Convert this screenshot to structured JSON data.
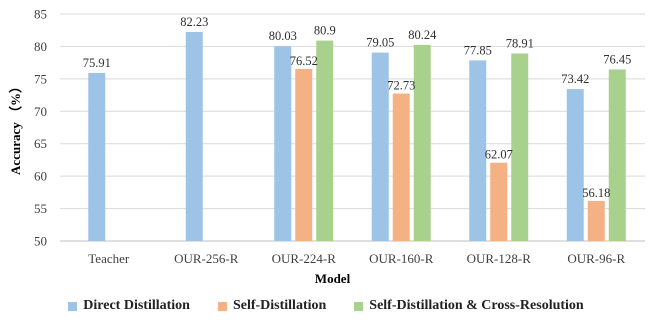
{
  "chart_data": {
    "type": "bar",
    "categories": [
      "Teacher",
      "OUR-256-R",
      "OUR-224-R",
      "OUR-160-R",
      "OUR-128-R",
      "OUR-96-R"
    ],
    "series": [
      {
        "name": "Direct Distillation",
        "color": "#9dc3e6",
        "values": [
          75.91,
          82.23,
          80.03,
          79.05,
          77.85,
          73.42
        ]
      },
      {
        "name": "Self-Distillation",
        "color": "#f4b183",
        "values": [
          null,
          null,
          76.52,
          72.73,
          62.07,
          56.18
        ]
      },
      {
        "name": "Self-Distillation & Cross-Resolution",
        "color": "#a9d18e",
        "values": [
          null,
          null,
          80.9,
          80.24,
          78.91,
          76.45
        ]
      }
    ],
    "data_labels": [
      [
        "75.91",
        "82.23",
        "80.03",
        "79.05",
        "77.85",
        "73.42"
      ],
      [
        null,
        null,
        "76.52",
        "72.73",
        "62.07",
        "56.18"
      ],
      [
        null,
        null,
        "80.9",
        "80.24",
        "78.91",
        "76.45"
      ]
    ],
    "xlabel": "Model",
    "ylabel": "Accuracy （%）",
    "ylim": [
      50,
      85
    ],
    "yticks": [
      "50",
      "55",
      "60",
      "65",
      "70",
      "75",
      "80",
      "85"
    ],
    "grid": true,
    "legend_position": "bottom"
  }
}
